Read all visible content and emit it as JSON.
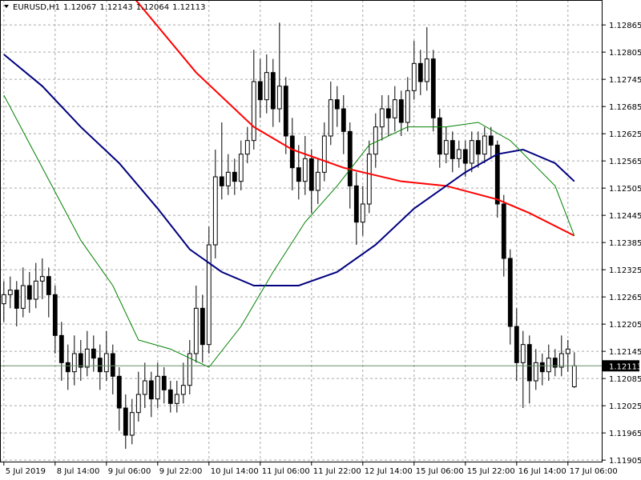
{
  "chart_data": {
    "type": "candlestick",
    "title": "EURUSD,H1",
    "ylim": [
      1.119,
      1.1292
    ],
    "xlim": [
      -0.6,
      93.4
    ],
    "yticks": [
      1.11905,
      1.11965,
      1.12025,
      1.12085,
      1.12145,
      1.12205,
      1.12265,
      1.12325,
      1.12385,
      1.12445,
      1.12505,
      1.12565,
      1.12625,
      1.12685,
      1.12745,
      1.12805,
      1.12865
    ],
    "xticks": [
      {
        "value": 0,
        "label": "5 Jul 2019"
      },
      {
        "value": 8,
        "label": "8 Jul 14:00"
      },
      {
        "value": 16,
        "label": "9 Jul 06:00"
      },
      {
        "value": 24,
        "label": "9 Jul 22:00"
      },
      {
        "value": 32,
        "label": "10 Jul 14:00"
      },
      {
        "value": 40,
        "label": "11 Jul 06:00"
      },
      {
        "value": 48,
        "label": "11 Jul 22:00"
      },
      {
        "value": 56,
        "label": "12 Jul 14:00"
      },
      {
        "value": 64,
        "label": "15 Jul 06:00"
      },
      {
        "value": 72,
        "label": "15 Jul 22:00"
      },
      {
        "value": 80,
        "label": "16 Jul 14:00"
      },
      {
        "value": 88,
        "label": "17 Jul 06:00"
      }
    ],
    "grid": true,
    "up_color": "#ffffff",
    "down_color": "#000000",
    "last_price_color": "#6b8e6b",
    "ohlc": [
      [
        1.1225,
        1.123,
        1.1221,
        1.1227
      ],
      [
        1.1227,
        1.1231,
        1.1224,
        1.1228
      ],
      [
        1.1228,
        1.123,
        1.122,
        1.1224
      ],
      [
        1.1224,
        1.1233,
        1.1222,
        1.1229
      ],
      [
        1.1229,
        1.1232,
        1.1223,
        1.1226
      ],
      [
        1.1226,
        1.1234,
        1.1224,
        1.123
      ],
      [
        1.123,
        1.1235,
        1.1226,
        1.1231
      ],
      [
        1.1231,
        1.1233,
        1.1222,
        1.1227
      ],
      [
        1.1227,
        1.1229,
        1.1214,
        1.1218
      ],
      [
        1.1218,
        1.1221,
        1.1208,
        1.1212
      ],
      [
        1.1212,
        1.1216,
        1.1206,
        1.121
      ],
      [
        1.121,
        1.1218,
        1.1207,
        1.1214
      ],
      [
        1.1214,
        1.1217,
        1.1208,
        1.1211
      ],
      [
        1.1211,
        1.1219,
        1.1209,
        1.1215
      ],
      [
        1.1215,
        1.1218,
        1.121,
        1.1213
      ],
      [
        1.1213,
        1.1216,
        1.1206,
        1.121
      ],
      [
        1.121,
        1.1219,
        1.1208,
        1.1214
      ],
      [
        1.1214,
        1.1216,
        1.1205,
        1.1209
      ],
      [
        1.1209,
        1.1211,
        1.1197,
        1.1202
      ],
      [
        1.1202,
        1.1205,
        1.1193,
        1.1196
      ],
      [
        1.1196,
        1.1204,
        1.1194,
        1.1201
      ],
      [
        1.1201,
        1.121,
        1.1199,
        1.1205
      ],
      [
        1.1205,
        1.1212,
        1.1202,
        1.1208
      ],
      [
        1.1208,
        1.121,
        1.12,
        1.1204
      ],
      [
        1.1204,
        1.1212,
        1.1202,
        1.1209
      ],
      [
        1.1209,
        1.1211,
        1.1203,
        1.1206
      ],
      [
        1.1206,
        1.1208,
        1.1201,
        1.1203
      ],
      [
        1.1203,
        1.1208,
        1.1201,
        1.1205
      ],
      [
        1.1205,
        1.1212,
        1.1203,
        1.1207
      ],
      [
        1.1207,
        1.1217,
        1.1205,
        1.1214
      ],
      [
        1.1214,
        1.1229,
        1.1212,
        1.1224
      ],
      [
        1.1224,
        1.1227,
        1.1212,
        1.1216
      ],
      [
        1.1216,
        1.1242,
        1.1214,
        1.1238
      ],
      [
        1.1238,
        1.1259,
        1.1235,
        1.1253
      ],
      [
        1.1253,
        1.1265,
        1.1248,
        1.1251
      ],
      [
        1.1251,
        1.1258,
        1.1249,
        1.1254
      ],
      [
        1.1254,
        1.1257,
        1.1249,
        1.1252
      ],
      [
        1.1252,
        1.1261,
        1.125,
        1.1258
      ],
      [
        1.1258,
        1.1264,
        1.1256,
        1.1261
      ],
      [
        1.1261,
        1.1281,
        1.1259,
        1.1274
      ],
      [
        1.1274,
        1.1279,
        1.1266,
        1.127
      ],
      [
        1.127,
        1.128,
        1.1267,
        1.1276
      ],
      [
        1.1276,
        1.1279,
        1.1264,
        1.1268
      ],
      [
        1.1268,
        1.1287,
        1.1265,
        1.1273
      ],
      [
        1.1273,
        1.1275,
        1.1258,
        1.1262
      ],
      [
        1.1262,
        1.1266,
        1.125,
        1.1255
      ],
      [
        1.1255,
        1.126,
        1.1248,
        1.1252
      ],
      [
        1.1252,
        1.1262,
        1.1249,
        1.1257
      ],
      [
        1.1257,
        1.1259,
        1.1245,
        1.125
      ],
      [
        1.125,
        1.1257,
        1.1247,
        1.1254
      ],
      [
        1.1254,
        1.1265,
        1.1252,
        1.1262
      ],
      [
        1.1262,
        1.1274,
        1.126,
        1.127
      ],
      [
        1.127,
        1.1273,
        1.1264,
        1.1268
      ],
      [
        1.1268,
        1.1271,
        1.1258,
        1.1263
      ],
      [
        1.1263,
        1.1265,
        1.1246,
        1.1251
      ],
      [
        1.1251,
        1.1254,
        1.1238,
        1.1243
      ],
      [
        1.1243,
        1.1251,
        1.124,
        1.1247
      ],
      [
        1.1247,
        1.1261,
        1.1245,
        1.1258
      ],
      [
        1.1258,
        1.1267,
        1.1255,
        1.1264
      ],
      [
        1.1264,
        1.1271,
        1.1261,
        1.1268
      ],
      [
        1.1268,
        1.1271,
        1.1262,
        1.1266
      ],
      [
        1.1266,
        1.1273,
        1.1263,
        1.127
      ],
      [
        1.127,
        1.1272,
        1.1262,
        1.1265
      ],
      [
        1.1265,
        1.1275,
        1.1263,
        1.1272
      ],
      [
        1.1272,
        1.1283,
        1.127,
        1.1278
      ],
      [
        1.1278,
        1.1281,
        1.1271,
        1.1274
      ],
      [
        1.1274,
        1.1286,
        1.1272,
        1.1279
      ],
      [
        1.1279,
        1.1281,
        1.1263,
        1.1266
      ],
      [
        1.1266,
        1.1268,
        1.1255,
        1.1258
      ],
      [
        1.1258,
        1.1264,
        1.1256,
        1.1261
      ],
      [
        1.1261,
        1.1263,
        1.1254,
        1.1257
      ],
      [
        1.1257,
        1.1261,
        1.1255,
        1.1259
      ],
      [
        1.1259,
        1.1261,
        1.1253,
        1.1256
      ],
      [
        1.1256,
        1.1263,
        1.1254,
        1.1261
      ],
      [
        1.1261,
        1.1263,
        1.1255,
        1.1258
      ],
      [
        1.1258,
        1.1264,
        1.1256,
        1.1262
      ],
      [
        1.1262,
        1.1264,
        1.1257,
        1.126
      ],
      [
        1.126,
        1.1261,
        1.1244,
        1.1247
      ],
      [
        1.1247,
        1.1249,
        1.1231,
        1.1235
      ],
      [
        1.1235,
        1.1237,
        1.1216,
        1.122
      ],
      [
        1.122,
        1.1224,
        1.1208,
        1.1212
      ],
      [
        1.1212,
        1.1219,
        1.1202,
        1.1216
      ],
      [
        1.1216,
        1.1218,
        1.1203,
        1.1208
      ],
      [
        1.1208,
        1.1215,
        1.1206,
        1.1212
      ],
      [
        1.1212,
        1.1214,
        1.1207,
        1.121
      ],
      [
        1.121,
        1.1216,
        1.1208,
        1.1213
      ],
      [
        1.1213,
        1.1215,
        1.1209,
        1.1211
      ],
      [
        1.1211,
        1.1218,
        1.1209,
        1.1214
      ],
      [
        1.1214,
        1.1217,
        1.121,
        1.1215
      ],
      [
        1.12067,
        1.12143,
        1.12064,
        1.12113
      ]
    ],
    "series": [
      {
        "color": "#ff0000",
        "width": 2,
        "x": [
          20,
          30,
          39,
          45,
          53,
          62,
          69,
          77,
          82,
          89
        ],
        "values": [
          1.1293,
          1.1276,
          1.1264,
          1.1259,
          1.1255,
          1.1252,
          1.1251,
          1.1248,
          1.1245,
          1.124
        ]
      },
      {
        "color": "#000080",
        "width": 2,
        "x": [
          0,
          6,
          12,
          18,
          24,
          29,
          34,
          39,
          46,
          52,
          58,
          64,
          72,
          77,
          81,
          86,
          89
        ],
        "values": [
          1.128,
          1.1273,
          1.1264,
          1.1256,
          1.1246,
          1.1237,
          1.1232,
          1.1229,
          1.1229,
          1.1232,
          1.1238,
          1.1246,
          1.1254,
          1.1258,
          1.1259,
          1.1256,
          1.1252
        ]
      },
      {
        "color": "#008000",
        "width": 1,
        "x": [
          0,
          6,
          12,
          17,
          21,
          26,
          32,
          37,
          42,
          47,
          52,
          57,
          63,
          69,
          74,
          79,
          86,
          89
        ],
        "values": [
          1.1271,
          1.1255,
          1.1239,
          1.1229,
          1.1217,
          1.1215,
          1.1211,
          1.122,
          1.1232,
          1.1243,
          1.1251,
          1.126,
          1.1264,
          1.1264,
          1.1265,
          1.1261,
          1.1251,
          1.124
        ]
      }
    ]
  }
}
